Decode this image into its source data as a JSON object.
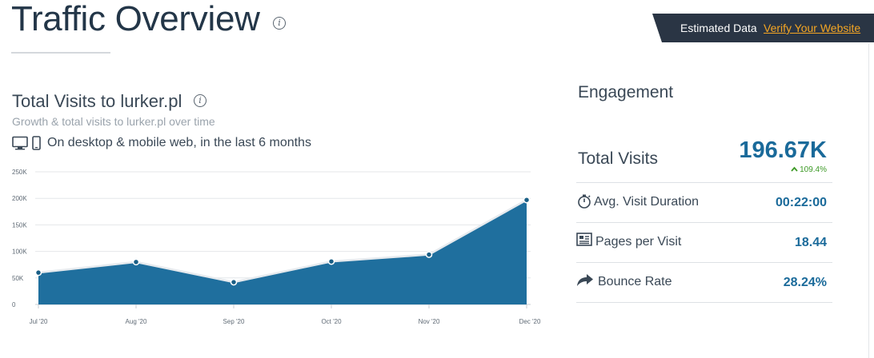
{
  "header": {
    "title": "Traffic Overview",
    "info_icon": "info-icon"
  },
  "banner": {
    "text": "Estimated Data",
    "link": "Verify Your Website",
    "bg_color": "#2a3544",
    "link_color": "#f5a623"
  },
  "visits_section": {
    "title": "Total Visits to lurker.pl",
    "subtitle": "Growth & total visits to lurker.pl over time",
    "devices_text": "On desktop & mobile web, in the last 6 months",
    "device_icons": [
      "desktop-icon",
      "mobile-icon"
    ]
  },
  "chart_data": {
    "type": "area",
    "categories": [
      "Jul '20",
      "Aug '20",
      "Sep '20",
      "Oct '20",
      "Nov '20",
      "Dec '20"
    ],
    "values": [
      60000,
      80000,
      42000,
      81000,
      94000,
      197000
    ],
    "y_ticks": [
      "0",
      "50K",
      "100K",
      "150K",
      "200K",
      "250K"
    ],
    "ylim": [
      0,
      250000
    ],
    "grid": true,
    "fill_color": "#1f6f9e",
    "line_color": "#e6eaee"
  },
  "engagement": {
    "title": "Engagement",
    "total_visits": {
      "label": "Total Visits",
      "value": "196.67K",
      "change": "109.4%",
      "change_color": "#3d9a26"
    },
    "metrics": [
      {
        "label": "Avg. Visit Duration",
        "value": "00:22:00",
        "icon": "stopwatch-icon"
      },
      {
        "label": "Pages per Visit",
        "value": "18.44",
        "icon": "pages-icon"
      },
      {
        "label": "Bounce Rate",
        "value": "28.24%",
        "icon": "bounce-arrow-icon"
      }
    ],
    "value_color": "#1a6a9a"
  }
}
